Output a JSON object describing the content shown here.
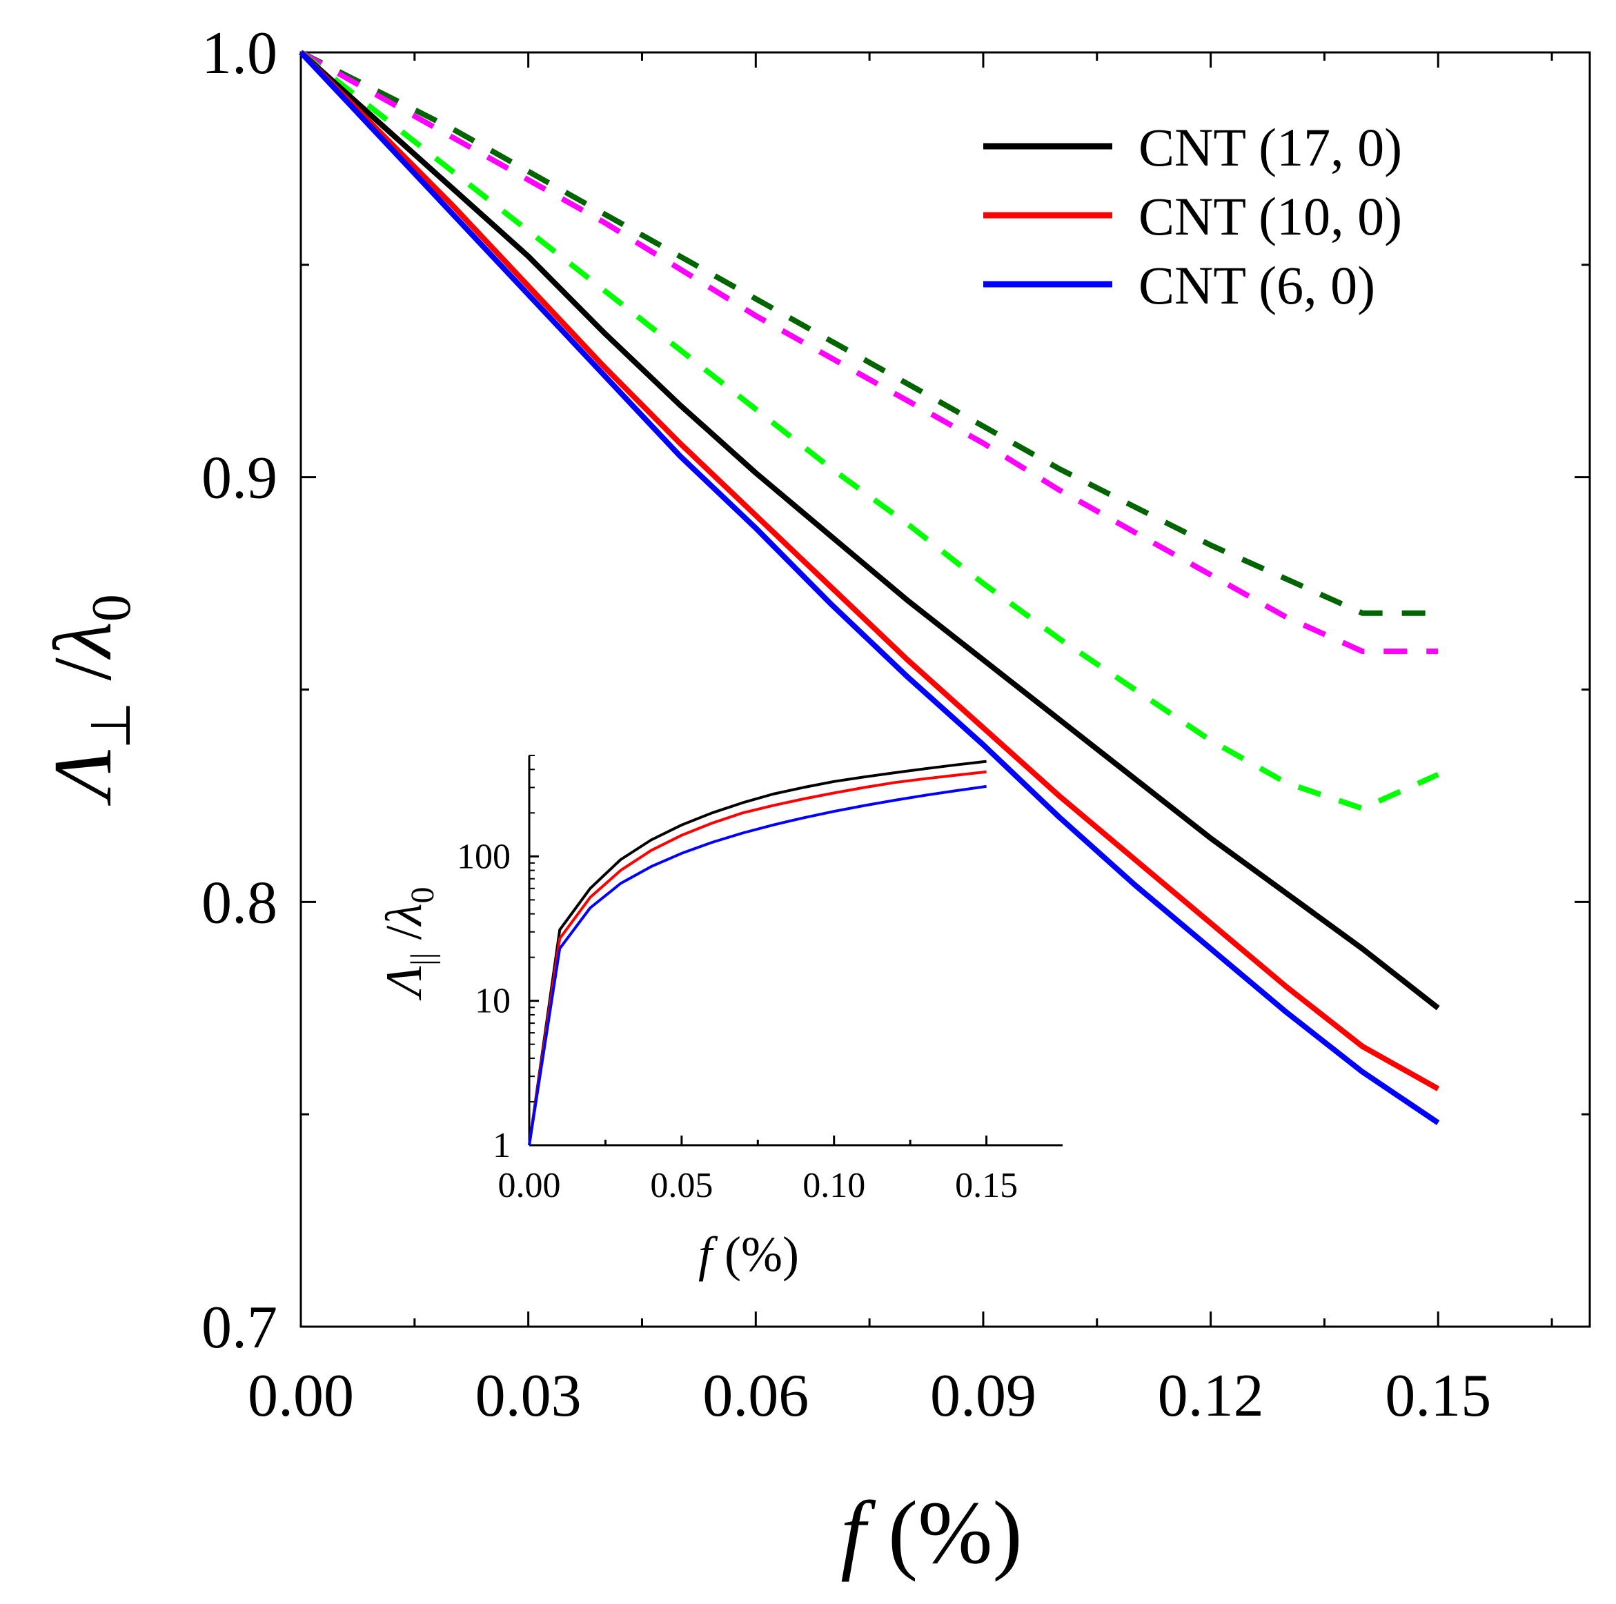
{
  "chart_data": [
    {
      "type": "line",
      "panel": "main",
      "xlabel": {
        "var": "f",
        "unit": "(%)"
      },
      "ylabel": {
        "base": "Λ",
        "sub": "⊥",
        "den": "λ",
        "den_sub": "0"
      },
      "xlim": [
        0,
        0.17
      ],
      "ylim": [
        0.7,
        1.0
      ],
      "x_ticks": [
        0.0,
        0.03,
        0.06,
        0.09,
        0.12,
        0.15
      ],
      "x_tick_labels": [
        "0.00",
        "0.03",
        "0.06",
        "0.09",
        "0.12",
        "0.15"
      ],
      "y_ticks": [
        0.7,
        0.8,
        0.9,
        1.0
      ],
      "y_tick_labels": [
        "0.7",
        "0.8",
        "0.9",
        "1.0"
      ],
      "legend_position": "top-right",
      "grid": false,
      "x": [
        0.0,
        0.01,
        0.02,
        0.03,
        0.04,
        0.05,
        0.06,
        0.07,
        0.08,
        0.09,
        0.1,
        0.11,
        0.12,
        0.13,
        0.14,
        0.15
      ],
      "series": [
        {
          "name": "CNT (17, 0)",
          "color": "#000000",
          "style": "solid",
          "values": [
            1.0,
            0.984,
            0.968,
            0.952,
            0.934,
            0.917,
            0.901,
            0.886,
            0.871,
            0.857,
            0.843,
            0.829,
            0.815,
            0.802,
            0.789,
            0.775
          ]
        },
        {
          "name": "CNT (10, 0)",
          "color": "#ff0000",
          "style": "solid",
          "values": [
            1.0,
            0.982,
            0.964,
            0.945,
            0.926,
            0.908,
            0.891,
            0.874,
            0.857,
            0.841,
            0.825,
            0.81,
            0.795,
            0.78,
            0.766,
            0.756
          ]
        },
        {
          "name": "CNT (6, 0)",
          "color": "#0000ff",
          "style": "solid",
          "values": [
            1.0,
            0.981,
            0.962,
            0.943,
            0.924,
            0.905,
            0.888,
            0.87,
            0.853,
            0.837,
            0.82,
            0.804,
            0.789,
            0.774,
            0.76,
            0.748
          ]
        },
        {
          "color": "#006400",
          "style": "dashed",
          "values": [
            1.0,
            0.991,
            0.982,
            0.972,
            0.962,
            0.952,
            0.942,
            0.932,
            0.922,
            0.912,
            0.902,
            0.893,
            0.884,
            0.876,
            0.868,
            0.868
          ]
        },
        {
          "color": "#ff00ff",
          "style": "dashed",
          "values": [
            1.0,
            0.99,
            0.98,
            0.97,
            0.96,
            0.949,
            0.938,
            0.928,
            0.918,
            0.908,
            0.897,
            0.887,
            0.877,
            0.867,
            0.859,
            0.859
          ]
        },
        {
          "color": "#00ff00",
          "style": "dashed",
          "values": [
            1.0,
            0.986,
            0.972,
            0.958,
            0.944,
            0.93,
            0.916,
            0.902,
            0.889,
            0.875,
            0.862,
            0.85,
            0.838,
            0.828,
            0.822,
            0.83
          ]
        }
      ]
    },
    {
      "type": "line",
      "panel": "inset",
      "y_scale": "log",
      "xlabel": {
        "var": "f",
        "unit": "(%)"
      },
      "ylabel": {
        "base": "Λ",
        "sub": "||",
        "den": "λ",
        "den_sub": "0"
      },
      "xlim": [
        0,
        0.175
      ],
      "ylim": [
        1,
        500
      ],
      "x_ticks": [
        0.0,
        0.05,
        0.1,
        0.15
      ],
      "x_tick_labels": [
        "0.00",
        "0.05",
        "0.10",
        "0.15"
      ],
      "y_ticks": [
        1,
        10,
        100
      ],
      "y_tick_labels": [
        "1",
        "10",
        "100"
      ],
      "x": [
        0.0,
        0.01,
        0.02,
        0.03,
        0.04,
        0.05,
        0.06,
        0.07,
        0.08,
        0.09,
        0.1,
        0.11,
        0.12,
        0.13,
        0.14,
        0.15
      ],
      "series": [
        {
          "color": "#000000",
          "style": "solid",
          "values": [
            1,
            31,
            60,
            95,
            130,
            165,
            200,
            235,
            270,
            300,
            330,
            355,
            380,
            405,
            430,
            455
          ]
        },
        {
          "color": "#ff0000",
          "style": "solid",
          "values": [
            1,
            27,
            52,
            80,
            110,
            140,
            170,
            200,
            225,
            250,
            275,
            300,
            325,
            345,
            365,
            385
          ]
        },
        {
          "color": "#0000ff",
          "style": "solid",
          "values": [
            1,
            23,
            44,
            65,
            85,
            105,
            125,
            145,
            165,
            185,
            205,
            225,
            245,
            265,
            285,
            305
          ]
        }
      ]
    }
  ]
}
